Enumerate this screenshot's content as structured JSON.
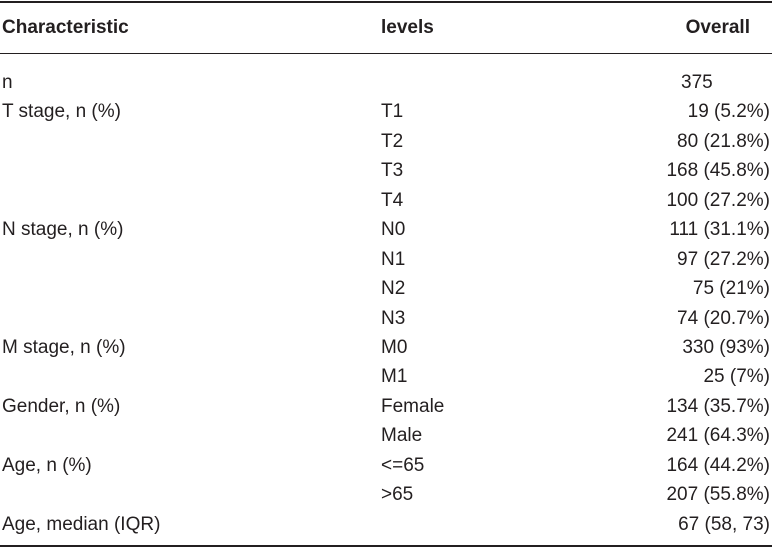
{
  "headers": {
    "characteristic": "Characteristic",
    "levels": "levels",
    "overall": "Overall"
  },
  "rows": [
    {
      "characteristic": "n",
      "level": "",
      "overall": "375"
    },
    {
      "characteristic": "T stage, n (%)",
      "level": "T1",
      "overall": "19 (5.2%)"
    },
    {
      "characteristic": "",
      "level": "T2",
      "overall": "80 (21.8%)"
    },
    {
      "characteristic": "",
      "level": "T3",
      "overall": "168 (45.8%)"
    },
    {
      "characteristic": "",
      "level": "T4",
      "overall": "100 (27.2%)"
    },
    {
      "characteristic": "N stage, n (%)",
      "level": "N0",
      "overall": "111 (31.1%)"
    },
    {
      "characteristic": "",
      "level": "N1",
      "overall": "97 (27.2%)"
    },
    {
      "characteristic": "",
      "level": "N2",
      "overall": "75 (21%)"
    },
    {
      "characteristic": "",
      "level": "N3",
      "overall": "74 (20.7%)"
    },
    {
      "characteristic": "M stage, n (%)",
      "level": "M0",
      "overall": "330 (93%)"
    },
    {
      "characteristic": "",
      "level": "M1",
      "overall": "25 (7%)"
    },
    {
      "characteristic": "Gender, n (%)",
      "level": "Female",
      "overall": "134 (35.7%)"
    },
    {
      "characteristic": "",
      "level": "Male",
      "overall": "241 (64.3%)"
    },
    {
      "characteristic": "Age, n (%)",
      "level": "<=65",
      "overall": "164 (44.2%)"
    },
    {
      "characteristic": "",
      "level": ">65",
      "overall": "207 (55.8%)"
    },
    {
      "characteristic": "Age, median (IQR)",
      "level": "",
      "overall": "67 (58, 73)"
    }
  ]
}
